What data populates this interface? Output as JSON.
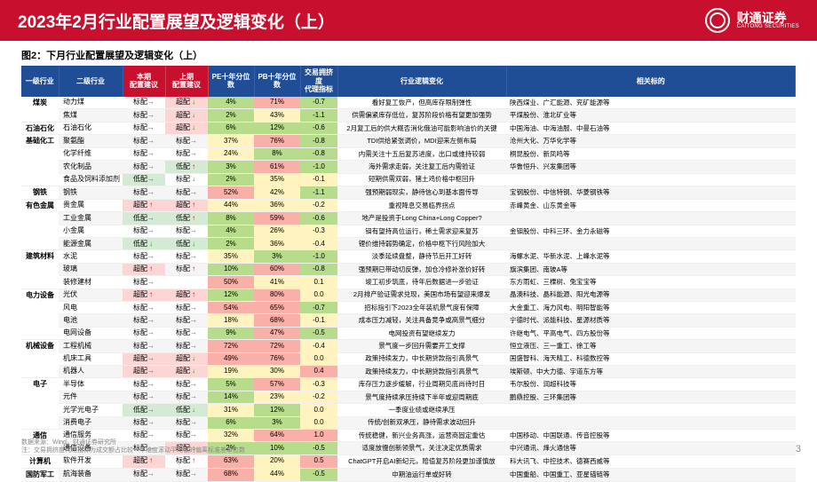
{
  "header": {
    "title": "2023年2月行业配置展望及逻辑变化（上）",
    "logo_cn": "财通证券",
    "logo_en": "CAITONG SECURITIES"
  },
  "chart_title": "图2：下月行业配置展望及逻辑变化（上）",
  "colors": {
    "header_red": "#c8102e",
    "th_blue": "#1f4e96",
    "th_red": "#c8102e",
    "rec_red": "#fcd5d5",
    "rec_green": "#d5ead5",
    "pe_pb_low": "#b6dc8c",
    "pe_pb_mid": "#fff4c0",
    "pe_pb_high": "#f9b0a8",
    "crowd_neg": "#b6dc8c",
    "crowd_mid": "#fff4c0",
    "crowd_pos": "#f9b0a8"
  },
  "columns": [
    "一级行业",
    "二级行业",
    "本期\n配置建议",
    "上期\n配置建议",
    "PE十年分位数",
    "PB十年分位数",
    "交易拥挤度\n代理指标",
    "行业逻辑变化",
    "相关标的"
  ],
  "rec_color_map": {
    "超配↑": "rec_red",
    "超配→": "rec_red",
    "超配↓": "rec_red",
    "低配↑": "rec_green",
    "低配→": "rec_green",
    "低配↓": "rec_green"
  },
  "groups": [
    {
      "cat": "煤炭",
      "rows": [
        [
          "动力煤",
          "标配→",
          "超配↓",
          "4%",
          "71%",
          "-0.7",
          "看好复工恢产，但高库存限制弹性",
          "陕西煤业、广汇能源、兖矿能源等"
        ],
        [
          "焦煤",
          "标配→",
          "超配↓",
          "2%",
          "43%",
          "-1.1",
          "供需偏紧库存低位，复苏阶段价格有望更加强势",
          "平煤股份、淮北矿业等"
        ]
      ]
    },
    {
      "cat": "石油石化",
      "rows": [
        [
          "石油石化",
          "标配→",
          "超配↓",
          "6%",
          "12%",
          "-0.6",
          "2月复工后的供大概否消化俄油可能影响油价的关键",
          "中国海油、中海油服、中曼石油等"
        ]
      ]
    },
    {
      "cat": "基础化工",
      "rows": [
        [
          "聚氨酯",
          "标配→",
          "标配→",
          "37%",
          "76%",
          "-0.8",
          "TDI供给紧张调价，MDI迎来左侧布局",
          "沧州大化、万华化学等"
        ],
        [
          "化学纤维",
          "标配→",
          "标配→",
          "24%",
          "8%",
          "-0.8",
          "内需关注十五后复苏进度，出口或维持较弱",
          "桐昆股份、新凤鸣等"
        ],
        [
          "农化制品",
          "标配→",
          "低配↑",
          "3%",
          "61%",
          "-1.0",
          "海外需求走弱，关注复工后内需验证",
          "华鲁恒升、兴发集团等"
        ],
        [
          "食品及饲料添加剂",
          "低配→",
          "标配↓",
          "2%",
          "35%",
          "-0.1",
          "短期供需双弱，猪土鸡价格中枢回升",
          ""
        ]
      ]
    },
    {
      "cat": "钢铁",
      "rows": [
        [
          "钢铁",
          "标配→",
          "标配→",
          "52%",
          "42%",
          "-1.1",
          "强预期弱现实，静待信心到基本面传导",
          "宝钢股份、中信特钢、华菱钢铁等"
        ]
      ]
    },
    {
      "cat": "有色金属",
      "rows": [
        [
          "贵金属",
          "超配↑",
          "超配↑",
          "44%",
          "36%",
          "-0.2",
          "重视降息交易临界拐点",
          "赤峰黄金、山东黄金等"
        ],
        [
          "工业金属",
          "低配→",
          "低配↑",
          "8%",
          "59%",
          "-0.6",
          "地产是投资于Long China+Long Copper?",
          ""
        ],
        [
          "小金属",
          "标配→",
          "标配→",
          "4%",
          "26%",
          "-0.3",
          "钼有望持高位运行，稀土需求迎来复苏",
          "金钼股份、中科三环、金力永磁等"
        ],
        [
          "能源金属",
          "低配↓",
          "低配↓",
          "2%",
          "36%",
          "-0.4",
          "锂价维持弱势确定，价格中枢下行风险加大",
          ""
        ]
      ]
    },
    {
      "cat": "建筑材料",
      "rows": [
        [
          "水泥",
          "标配→",
          "标配→",
          "35%",
          "3%",
          "-1.0",
          "淡季延续盘整，静待节后开工好转",
          "海螺水泥、华新水泥、上峰水泥等"
        ],
        [
          "玻璃",
          "超配↑",
          "标配↑",
          "10%",
          "60%",
          "-0.8",
          "强预期已带动切反弹，加仓冷修补涨价好转",
          "旗滨集团、南玻A等"
        ],
        [
          "装修建材",
          "标配→",
          "",
          "50%",
          "41%",
          "0.1",
          "竣工初步筑底，待年后数据进一步验证",
          "东方雨虹、三棵树、兔宝宝等"
        ]
      ]
    },
    {
      "cat": "电力设备",
      "rows": [
        [
          "光伏",
          "超配↑",
          "超配↑",
          "12%",
          "80%",
          "0.0",
          "2月排产验证需求兑现，美国市场有望迎来爆发",
          "晶澳科技、晶科能源、阳光电源等"
        ],
        [
          "风电",
          "标配→",
          "标配→",
          "54%",
          "65%",
          "-0.7",
          "招标指引下2023全年装机景气度有保障",
          "大金重工、海力风电、明阳智能等"
        ],
        [
          "电池",
          "标配→",
          "标配→",
          "18%",
          "68%",
          "-0.1",
          "成本压力减轻，关注具备竞争或高景气细分",
          "宁德时代、派能科技、星源材质等"
        ],
        [
          "电网设备",
          "标配→",
          "标配→",
          "9%",
          "47%",
          "-0.5",
          "电网投资有望继续发力",
          "许继电气、平高电气、四方股份等"
        ]
      ]
    },
    {
      "cat": "机械设备",
      "rows": [
        [
          "工程机械",
          "标配→",
          "标配→",
          "72%",
          "72%",
          "-0.4",
          "景气度一步回升需要开工支撑",
          "恒立液压、三一重工、徐工等"
        ],
        [
          "机床工具",
          "超配→",
          "超配↓",
          "49%",
          "76%",
          "0.0",
          "政策持续发力，中长期贷款指引高景气",
          "国盛智科、海天精工、科德数控等"
        ],
        [
          "机器人",
          "超配→",
          "超配↓",
          "19%",
          "30%",
          "0.4",
          "政策持续发力，中长期贷款指引高景气",
          "埃斯顿、中大力德、宇道东方等"
        ]
      ]
    },
    {
      "cat": "电子",
      "rows": [
        [
          "半导体",
          "标配→",
          "标配→",
          "5%",
          "57%",
          "-0.3",
          "库存压力逐步缓解，行业周期见底尚待时日",
          "韦尔股份、润超科技等"
        ],
        [
          "元件",
          "标配→",
          "标配→",
          "14%",
          "23%",
          "-0.2",
          "景气度持续承压持续下半年或迎周期底",
          "鹏鼎控股、三环集团等"
        ],
        [
          "光学光电子",
          "低配→",
          "低配↓",
          "31%",
          "12%",
          "0.0",
          "一季度业绩或继续承压",
          ""
        ],
        [
          "消费电子",
          "标配→",
          "标配→",
          "6%",
          "3%",
          "0.0",
          "传统/创新双承压，静待需求波动回升",
          ""
        ]
      ]
    },
    {
      "cat": "通信",
      "rows": [
        [
          "通信服务",
          "标配→",
          "标配→",
          "32%",
          "64%",
          "1.0",
          "传统稳健，新兴业务高涨，运营商固定重估",
          "中国移动、中国联通、传音控股等"
        ],
        [
          "通信设备",
          "标配→",
          "超配↓",
          "2%",
          "10%",
          "-0.5",
          "适度放慢创新领景气，关注决定优质需求",
          "中兴通讯、烽火通信等"
        ]
      ]
    },
    {
      "cat": "计算机",
      "rows": [
        [
          "软件开发",
          "超配↑",
          "标配↑",
          "63%",
          "20%",
          "0.5",
          "ChatGPT开启AI新纪元，赔值复苏阶段更加谨慎放",
          "科大讯飞、中控技术、德赛西威等"
        ]
      ]
    },
    {
      "cat": "国防军工",
      "rows": [
        [
          "航海装备",
          "标配→",
          "标配→",
          "68%",
          "44%",
          "-0.5",
          "中期油运行单或好转",
          "中国重船、中国重工、亚星锚链等"
        ]
      ]
    }
  ],
  "footer": {
    "line1": "数据来源：Wind，财通证券研究所",
    "line2": "注：交易拥挤度代理指标为成交额占比较一年维度滚动平均值的偏离标准差单位数"
  },
  "page_num": "3"
}
